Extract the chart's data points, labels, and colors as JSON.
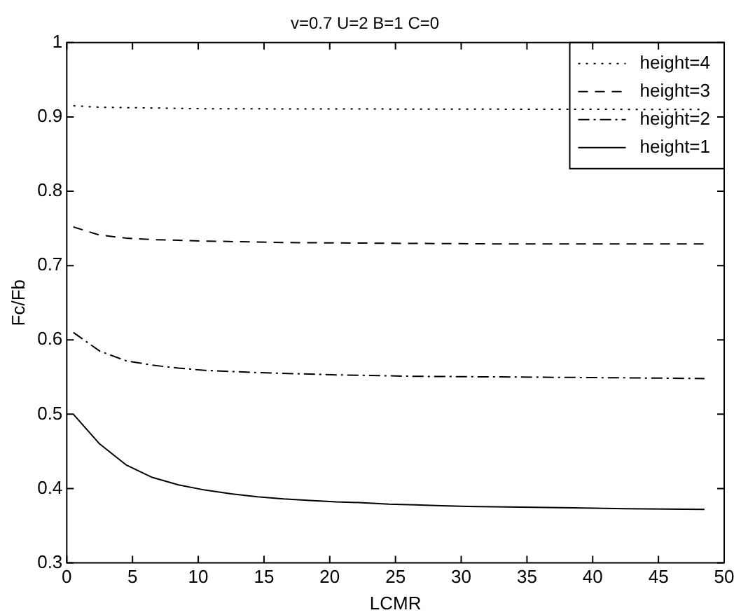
{
  "chart_data": {
    "type": "line",
    "title": "v=0.7 U=2 B=1 C=0",
    "xlabel": "LCMR",
    "ylabel": "Fc/Fb",
    "xlim": [
      0,
      50
    ],
    "xticks": [
      0,
      5,
      10,
      15,
      20,
      25,
      30,
      35,
      40,
      45,
      50
    ],
    "ylim": [
      0.3,
      1
    ],
    "yticks": [
      0.3,
      0.4,
      0.5,
      0.6,
      0.7,
      0.8,
      0.9,
      1
    ],
    "legend": "top right",
    "marker": "none",
    "series": [
      {
        "name": "height=4",
        "color": "#000000",
        "line_style": "dotted",
        "x": [
          0.5,
          2.5,
          10.5,
          48.5
        ],
        "values": [
          0.915,
          0.913,
          0.911,
          0.91
        ]
      },
      {
        "name": "height=3",
        "color": "#000000",
        "line_style": "dashed",
        "x": [
          0.5,
          2.5,
          4.5,
          6.5,
          10.5,
          16.5,
          24.5,
          34.5,
          48.5
        ],
        "values": [
          0.752,
          0.741,
          0.737,
          0.735,
          0.733,
          0.731,
          0.73,
          0.729,
          0.729
        ]
      },
      {
        "name": "height=2",
        "color": "#000000",
        "line_style": "dashdot",
        "x": [
          0.5,
          2.5,
          4.5,
          6.5,
          8.5,
          10.5,
          14.5,
          20.5,
          26.5,
          34.5,
          42.5,
          48.5
        ],
        "values": [
          0.61,
          0.585,
          0.572,
          0.566,
          0.562,
          0.559,
          0.556,
          0.553,
          0.551,
          0.55,
          0.549,
          0.548
        ]
      },
      {
        "name": "height=1",
        "color": "#000000",
        "line_style": "solid",
        "x": [
          0.5,
          2.5,
          4.5,
          6.5,
          8.5,
          10.5,
          12.5,
          14.5,
          16.5,
          18.5,
          20.5,
          22.5,
          24.5,
          26.5,
          28.5,
          30.5,
          34.5,
          38.5,
          42.5,
          48.5
        ],
        "values": [
          0.5,
          0.46,
          0.432,
          0.415,
          0.405,
          0.398,
          0.393,
          0.389,
          0.386,
          0.384,
          0.382,
          0.381,
          0.379,
          0.378,
          0.377,
          0.376,
          0.375,
          0.374,
          0.373,
          0.372
        ]
      }
    ]
  }
}
